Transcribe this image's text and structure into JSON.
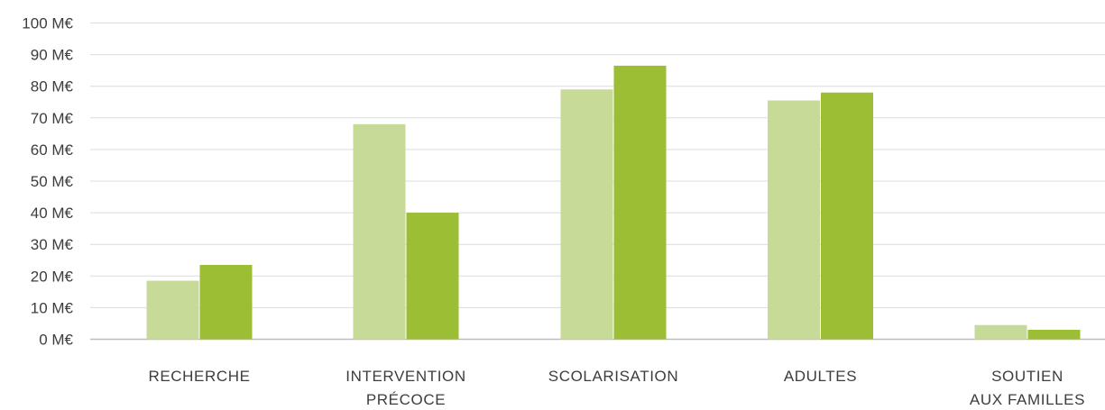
{
  "chart_data": {
    "type": "bar",
    "categories": [
      [
        "RECHERCHE"
      ],
      [
        "INTERVENTION",
        "PRÉCOCE"
      ],
      [
        "SCOLARISATION"
      ],
      [
        "ADULTES"
      ],
      [
        "SOUTIEN",
        "AUX FAMILLES"
      ]
    ],
    "series": [
      {
        "values": [
          18.5,
          68,
          79,
          75.5,
          4.5
        ],
        "color": "#c7da98"
      },
      {
        "values": [
          23.5,
          40,
          86.5,
          78,
          3
        ],
        "color": "#9bbe35"
      }
    ],
    "ylim": [
      0,
      100
    ],
    "yticks": [
      0,
      10,
      20,
      30,
      40,
      50,
      60,
      70,
      80,
      90,
      100
    ],
    "ytick_suffix": " M€",
    "title": "",
    "xlabel": "",
    "ylabel": "",
    "grid": true,
    "legend": "none"
  }
}
